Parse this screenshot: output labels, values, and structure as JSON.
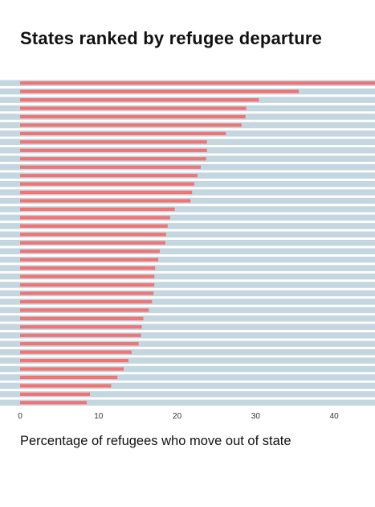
{
  "title": "States ranked by refugee departure",
  "xlabel": "Percentage of refugees who move out of state",
  "chart_data": {
    "type": "bar",
    "orientation": "horizontal",
    "title": "States ranked by refugee departure",
    "xlabel": "Percentage of refugees who move out of state",
    "ylabel": "",
    "xlim": [
      0,
      45.2
    ],
    "xticks": [
      0,
      10,
      20,
      30,
      40
    ],
    "values": [
      45.5,
      35.5,
      30.4,
      28.8,
      28.7,
      28.2,
      26.2,
      23.8,
      23.8,
      23.7,
      23.0,
      22.6,
      22.2,
      21.9,
      21.7,
      19.7,
      19.1,
      18.8,
      18.6,
      18.5,
      17.8,
      17.6,
      17.2,
      17.1,
      17.1,
      17.0,
      16.8,
      16.4,
      15.7,
      15.5,
      15.4,
      15.1,
      14.2,
      13.8,
      13.2,
      12.4,
      11.6,
      8.9,
      8.5
    ],
    "colors": {
      "bar": "#f07474",
      "row_bg": "#c4d6e0",
      "background": "#ffffff"
    }
  }
}
